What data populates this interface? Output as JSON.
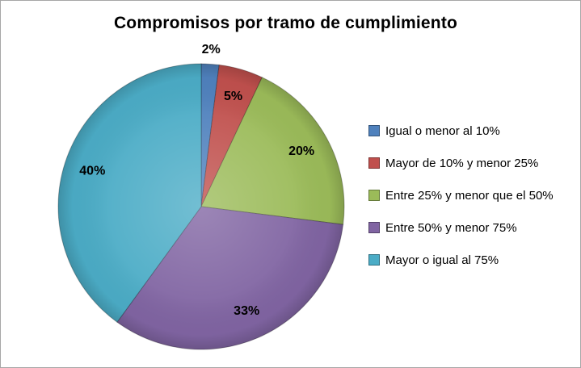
{
  "frame": {
    "background_color": "#ffffff",
    "border_color": "#a6a6a6"
  },
  "chart_data": {
    "type": "pie",
    "title": "Compromisos por tramo de cumplimiento",
    "legend_position": "right",
    "start_angle_deg": 0,
    "direction": "clockwise",
    "slices": [
      {
        "label": "Igual o menor al 10%",
        "value_pct": 2,
        "data_label": "2%",
        "color": "#4F81BD",
        "label_placement": "outside"
      },
      {
        "label": "Mayor de 10% y menor 25%",
        "value_pct": 5,
        "data_label": "5%",
        "color": "#C0504D",
        "label_placement": "inside"
      },
      {
        "label": "Entre 25% y menor que el 50%",
        "value_pct": 20,
        "data_label": "20%",
        "color": "#9BBB59",
        "label_placement": "inside"
      },
      {
        "label": "Entre 50% y menor 75%",
        "value_pct": 33,
        "data_label": "33%",
        "color": "#8064A2",
        "label_placement": "inside"
      },
      {
        "label": "Mayor o igual al 75%",
        "value_pct": 40,
        "data_label": "40%",
        "color": "#4BACC6",
        "label_placement": "inside"
      }
    ]
  }
}
